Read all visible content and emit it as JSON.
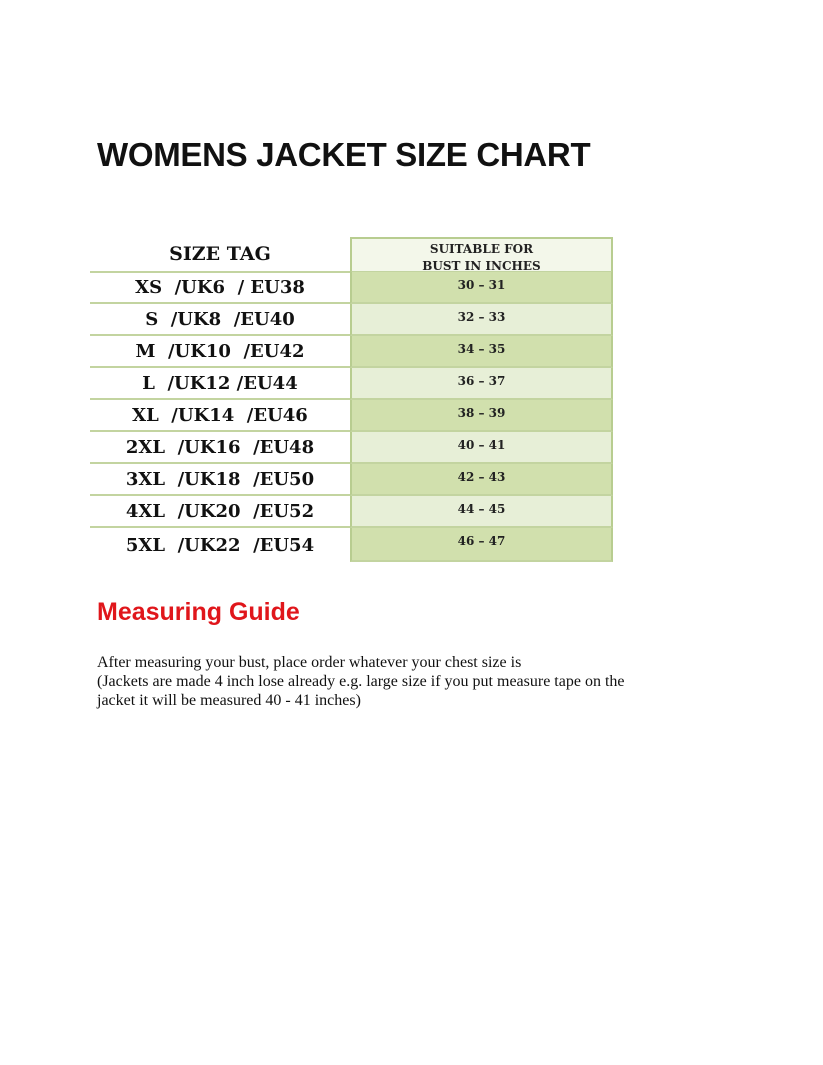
{
  "title": "WOMENS JACKET SIZE CHART",
  "table": {
    "headers": [
      "SIZE TAG",
      "SUITABLE FOR",
      "BUST IN INCHES"
    ],
    "rows": [
      {
        "size": "XS  /UK6  / EU38",
        "bust": "30 – 31"
      },
      {
        "size": "S  /UK8  /EU40",
        "bust": "32 – 33"
      },
      {
        "size": "M  /UK10  /EU42",
        "bust": "34 – 35"
      },
      {
        "size": "L  /UK12 /EU44",
        "bust": "36 – 37"
      },
      {
        "size": "XL  /UK14  /EU46",
        "bust": "38 – 39"
      },
      {
        "size": "2XL  /UK16  /EU48",
        "bust": "40 – 41"
      },
      {
        "size": "3XL  /UK18  /EU50",
        "bust": "42 – 43"
      },
      {
        "size": "4XL  /UK20  /EU52",
        "bust": "44 – 45"
      },
      {
        "size": "5XL  /UK22  /EU54",
        "bust": "46 – 47"
      }
    ]
  },
  "guide": {
    "heading": "Measuring Guide",
    "lines": [
      "After measuring your bust, place order whatever your chest size is",
      "(Jackets are made 4 inch lose already e.g. large size if you put measure tape on the",
      "jacket it will be measured 40 - 41 inches)"
    ]
  },
  "colors": {
    "accent": "#e0161b",
    "green_dark": "#d1e0ad",
    "green_light": "#e7efd7"
  }
}
